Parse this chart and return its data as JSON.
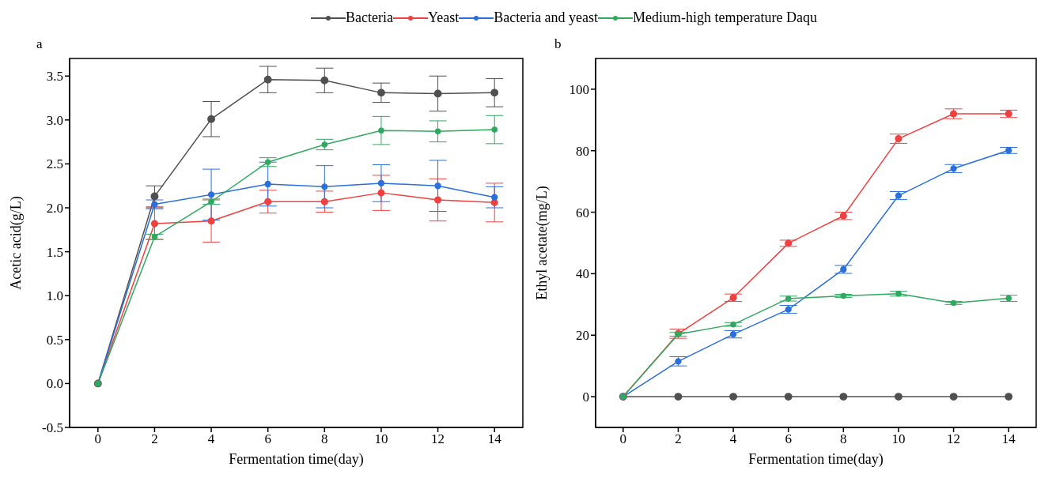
{
  "chart_data": [
    {
      "type": "line",
      "title": "a",
      "xlabel": "Fermentation time(day)",
      "ylabel": "Acetic acid(g/L)",
      "x": [
        0,
        2,
        4,
        6,
        8,
        10,
        12,
        14
      ],
      "xlim": [
        -1,
        15
      ],
      "xticks": [
        0,
        2,
        4,
        6,
        8,
        10,
        12,
        14
      ],
      "ylim": [
        -0.5,
        3.7
      ],
      "yticks": [
        -0.5,
        {
          "value": 0,
          "label": "0.0"
        },
        0.5,
        {
          "value": 1,
          "label": "1.0"
        },
        1.5,
        {
          "value": 2,
          "label": "2.0"
        },
        2.5,
        {
          "value": 3,
          "label": "3.0"
        },
        3.5
      ],
      "grid": false,
      "legend": "top",
      "marker": "circle",
      "line_style": "solid",
      "series": [
        {
          "name": "Bacteria",
          "color": "#505050",
          "values": [
            0,
            2.13,
            3.01,
            3.46,
            3.45,
            3.31,
            3.3,
            3.31
          ],
          "errors": [
            0,
            0.12,
            0.2,
            0.15,
            0.14,
            0.11,
            0.2,
            0.16
          ]
        },
        {
          "name": "Yeast",
          "color": "#f04040",
          "values": [
            0,
            1.82,
            1.85,
            2.07,
            2.07,
            2.17,
            2.09,
            2.06
          ],
          "errors": [
            0,
            0.18,
            0.24,
            0.13,
            0.12,
            0.2,
            0.24,
            0.22
          ]
        },
        {
          "name": "Bacteria and yeast",
          "color": "#2a6fdb",
          "values": [
            0,
            2.04,
            2.15,
            2.27,
            2.24,
            2.28,
            2.25,
            2.12
          ],
          "errors": [
            0,
            0.05,
            0.29,
            0.25,
            0.24,
            0.21,
            0.29,
            0.12
          ]
        },
        {
          "name": "Medium-high temperature Daqu",
          "color": "#30a860",
          "values": [
            0,
            1.67,
            2.07,
            2.52,
            2.72,
            2.88,
            2.87,
            2.89
          ],
          "errors": [
            0,
            0.03,
            0.03,
            0.05,
            0.06,
            0.16,
            0.12,
            0.16
          ]
        }
      ]
    },
    {
      "type": "line",
      "title": "b",
      "xlabel": "Fermentation time(day)",
      "ylabel": "Ethyl acetate(mg/L)",
      "x": [
        0,
        2,
        4,
        6,
        8,
        10,
        12,
        14
      ],
      "xlim": [
        -1,
        15
      ],
      "xticks": [
        0,
        2,
        4,
        6,
        8,
        10,
        12,
        14
      ],
      "ylim": [
        -10,
        110
      ],
      "yticks": [
        0,
        20,
        40,
        60,
        80,
        100
      ],
      "grid": false,
      "marker": "circle",
      "line_style": "solid",
      "series": [
        {
          "color": "#505050",
          "values": [
            0,
            0,
            0,
            0,
            0,
            0,
            0,
            0
          ],
          "errors": [
            0,
            0,
            0,
            0,
            0,
            0,
            0,
            0
          ]
        },
        {
          "color": "#f04040",
          "values": [
            0,
            20.5,
            32.2,
            49.9,
            58.8,
            83.9,
            92.0,
            92.0
          ],
          "errors": [
            0,
            1.5,
            1.2,
            1,
            1.2,
            1.5,
            1.6,
            1.2
          ]
        },
        {
          "color": "#2a6fdb",
          "values": [
            0,
            11.5,
            20.3,
            28.4,
            41.4,
            65.4,
            74.2,
            80.1
          ],
          "errors": [
            0,
            1.5,
            1.2,
            1.3,
            1.3,
            1.3,
            1.3,
            1
          ]
        },
        {
          "color": "#30a860",
          "values": [
            0,
            20.3,
            23.5,
            31.9,
            32.8,
            33.5,
            30.5,
            32.0
          ],
          "errors": [
            0,
            0.6,
            0.6,
            0.8,
            0.5,
            0.8,
            0.5,
            1
          ]
        }
      ]
    }
  ]
}
